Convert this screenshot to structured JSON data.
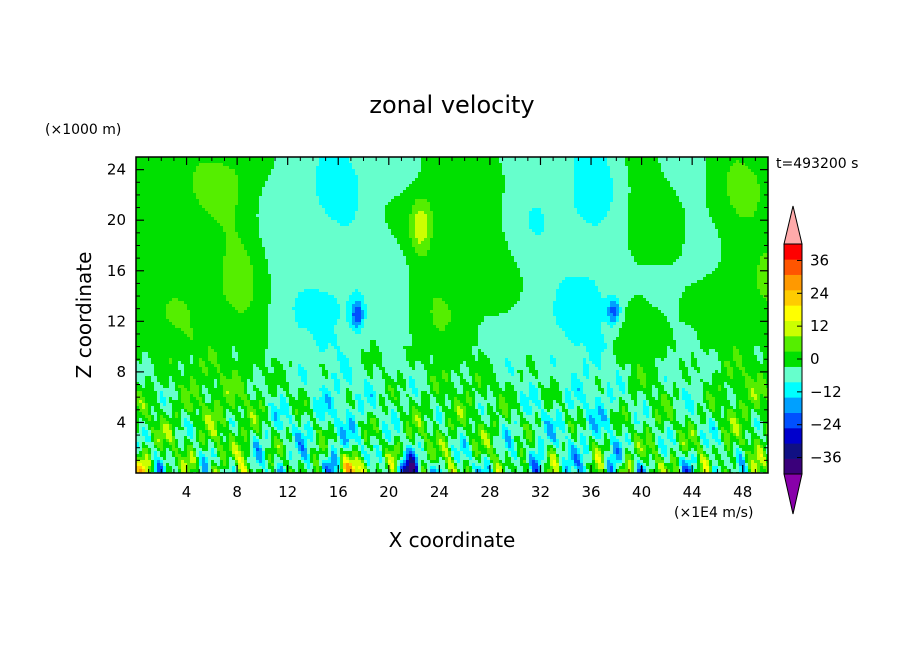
{
  "chart_data": {
    "type": "heatmap",
    "title": "zonal velocity",
    "xlabel": "X coordinate",
    "ylabel": "Z coordinate",
    "y_unit_label": "(×1000 m)",
    "colorbar_unit_label": "(×1E4 m/s)",
    "time_label": "t=493200 s",
    "xlim": [
      0,
      50
    ],
    "ylim": [
      0,
      25
    ],
    "x_ticks": [
      4,
      8,
      12,
      16,
      20,
      24,
      28,
      32,
      36,
      40,
      44,
      48
    ],
    "y_ticks": [
      4,
      8,
      12,
      16,
      20,
      24
    ],
    "colorbar": {
      "min": -42,
      "max": 42,
      "step": 6,
      "tick_values": [
        36,
        24,
        12,
        0,
        -12,
        -24,
        -36
      ],
      "tick_labels": [
        "36",
        "24",
        "12",
        "0",
        "−12",
        "−24",
        "−36"
      ],
      "colors": [
        "#3a007a",
        "#101083",
        "#0000cc",
        "#0050ff",
        "#00a0ff",
        "#00ffff",
        "#66ffcc",
        "#00e000",
        "#55ee00",
        "#ccff00",
        "#ffff00",
        "#ffcc00",
        "#ff9900",
        "#ff5500",
        "#ff0000"
      ],
      "under_color": "#8800aa",
      "over_color": "#ffaaaa"
    },
    "field_features": {
      "upper_band_values_at_x": {
        "x": [
          0,
          4,
          8,
          12,
          16,
          20,
          24,
          28,
          32,
          36,
          40,
          44,
          48,
          50
        ],
        "v": [
          3,
          4,
          6,
          -4,
          -6,
          -2,
          4,
          1,
          -4,
          -7,
          2,
          -1,
          5,
          5
        ]
      },
      "low_level_max": 38,
      "low_level_min": -30
    }
  }
}
